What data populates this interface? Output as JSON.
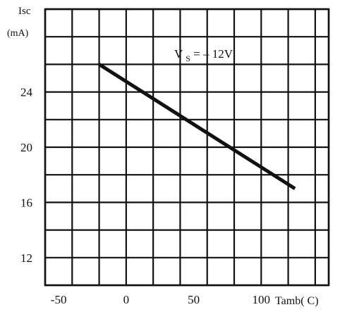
{
  "chart_data": {
    "type": "line",
    "title": "",
    "ylabel_line1": "Isc",
    "ylabel_line2": "(mA)",
    "xlabel": "Tamb( C)",
    "annotation": "Vs = – 12V",
    "annotation_main": "V",
    "annotation_sub": "S",
    "annotation_rest": " = – 12V",
    "xlim": [
      -60,
      150
    ],
    "ylim": [
      10,
      30
    ],
    "grid": true,
    "x_gridlines": [
      -60,
      -40,
      -20,
      0,
      20,
      40,
      60,
      80,
      100,
      120,
      140,
      150
    ],
    "y_gridlines": [
      10,
      12,
      14,
      16,
      18,
      20,
      22,
      24,
      26,
      28,
      30
    ],
    "xticks": [
      {
        "value": -50,
        "label": "-50"
      },
      {
        "value": 0,
        "label": "0"
      },
      {
        "value": 50,
        "label": "50"
      },
      {
        "value": 100,
        "label": "100"
      }
    ],
    "yticks": [
      {
        "value": 12,
        "label": "12"
      },
      {
        "value": 16,
        "label": "16"
      },
      {
        "value": 20,
        "label": "20"
      },
      {
        "value": 24,
        "label": "24"
      }
    ],
    "series": [
      {
        "x": [
          -20,
          125
        ],
        "y": [
          26,
          17
        ],
        "color": "#111111"
      }
    ]
  }
}
